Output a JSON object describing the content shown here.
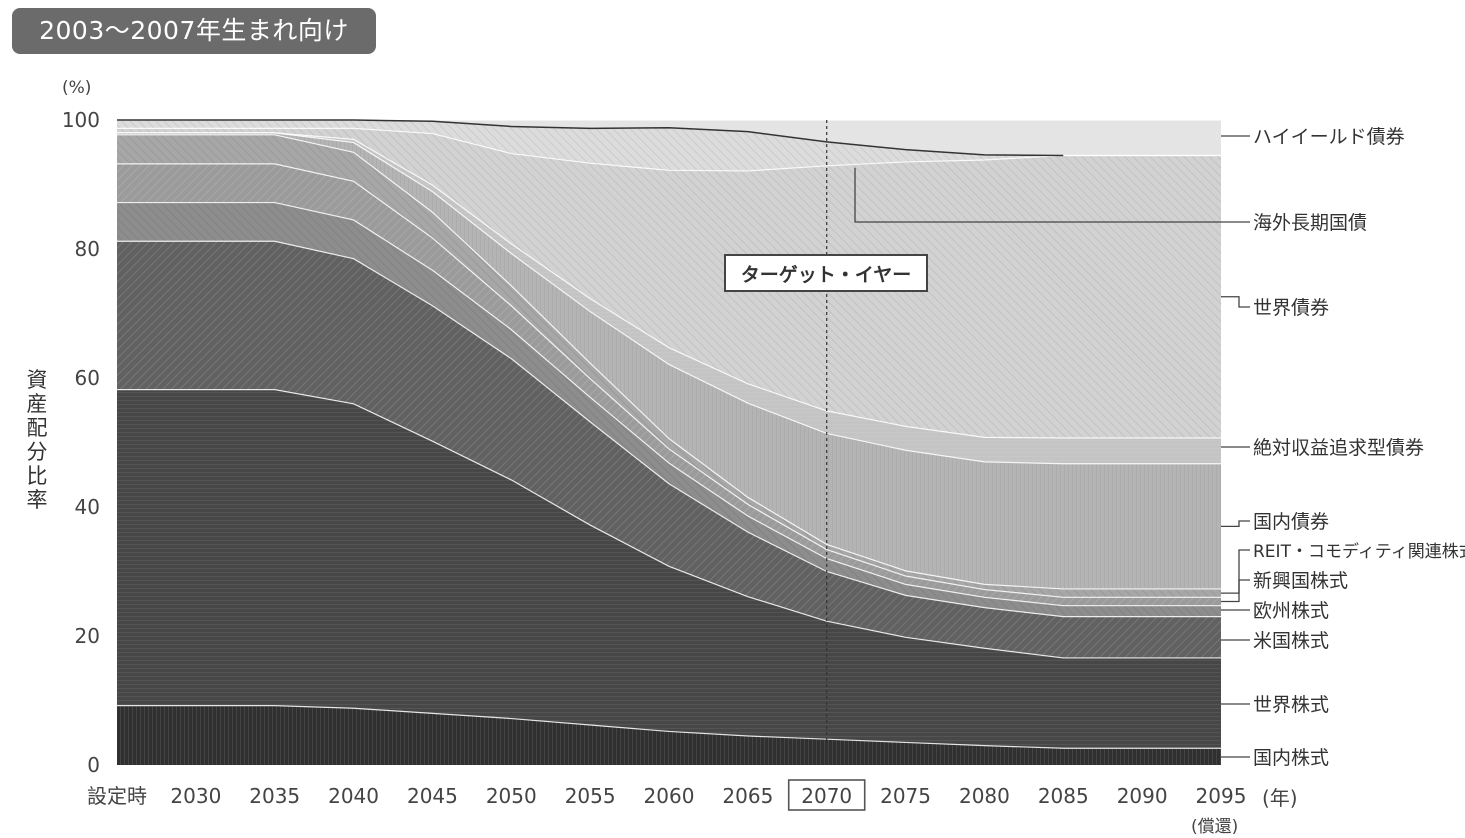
{
  "title": "2003〜2007年生まれ向け",
  "target_label": "ターゲット・イヤー",
  "x_unit": "(年)",
  "x_last_sublabel": "(償還)",
  "chart_data": {
    "type": "area",
    "stacked": true,
    "ylabel": "資産配分比率",
    "y_unit": "(%)",
    "ylim": [
      0,
      100
    ],
    "yticks": [
      0,
      20,
      40,
      60,
      80,
      100
    ],
    "categories": [
      "設定時",
      "2030",
      "2035",
      "2040",
      "2045",
      "2050",
      "2055",
      "2060",
      "2065",
      "2070",
      "2075",
      "2080",
      "2085",
      "2090",
      "2095"
    ],
    "highlight_category": "2070",
    "x": [
      2025,
      2030,
      2035,
      2040,
      2045,
      2050,
      2055,
      2060,
      2065,
      2070,
      2075,
      2080,
      2085,
      2090,
      2095
    ],
    "series": [
      {
        "name": "国内株式",
        "values": [
          9.2,
          9.2,
          9.2,
          8.8,
          8.0,
          7.2,
          6.2,
          5.2,
          4.5,
          4.0,
          3.5,
          3.0,
          2.6,
          2.6,
          2.6
        ]
      },
      {
        "name": "世界株式",
        "values": [
          49.0,
          49.0,
          49.0,
          47.2,
          42.2,
          37.0,
          31.0,
          25.6,
          21.6,
          18.3,
          16.3,
          15.1,
          14.0,
          14.0,
          14.0
        ]
      },
      {
        "name": "米国株式",
        "values": [
          23.0,
          23.0,
          23.0,
          22.5,
          21.0,
          18.8,
          16.0,
          12.8,
          10.0,
          7.7,
          6.5,
          6.3,
          6.4,
          6.4,
          6.4
        ]
      },
      {
        "name": "欧州株式",
        "values": [
          6.0,
          6.0,
          6.0,
          6.0,
          5.5,
          4.5,
          3.8,
          3.2,
          2.5,
          2.0,
          1.7,
          1.6,
          1.7,
          1.7,
          1.7
        ]
      },
      {
        "name": "新興国株式",
        "values": [
          6.0,
          6.0,
          6.0,
          6.0,
          5.0,
          3.7,
          2.9,
          2.2,
          1.8,
          1.4,
          1.3,
          1.2,
          1.3,
          1.3,
          1.3
        ]
      },
      {
        "name": "REIT・コモディティ関連株式",
        "values": [
          4.5,
          4.5,
          4.5,
          4.5,
          4.0,
          3.1,
          2.4,
          1.6,
          1.1,
          0.8,
          0.8,
          0.8,
          1.3,
          1.3,
          1.3
        ]
      },
      {
        "name": "国内債券",
        "values": [
          0.3,
          0.3,
          0.3,
          1.5,
          3.2,
          5.0,
          8.0,
          11.5,
          14.6,
          17.2,
          18.7,
          19.0,
          19.4,
          19.4,
          19.4
        ]
      },
      {
        "name": "絶対収益追求型債券",
        "values": [
          0,
          0,
          0,
          0.5,
          1.0,
          1.5,
          2.0,
          2.6,
          3.0,
          3.5,
          3.7,
          3.8,
          4.0,
          4.0,
          4.0
        ]
      },
      {
        "name": "世界債券",
        "values": [
          0.7,
          0.7,
          0.7,
          1.7,
          8.0,
          14.0,
          21.0,
          27.5,
          33.0,
          38.0,
          41.0,
          43.0,
          43.8,
          43.8,
          43.8
        ]
      },
      {
        "name": "海外長期国債",
        "values": [
          1.3,
          1.3,
          1.3,
          1.3,
          1.9,
          4.2,
          5.4,
          6.6,
          6.1,
          3.7,
          1.9,
          0.8,
          0,
          0,
          0
        ]
      },
      {
        "name": "ハイイールド債券",
        "values": [
          0,
          0,
          0,
          0,
          0.2,
          1.0,
          1.3,
          1.2,
          1.8,
          3.4,
          4.6,
          5.4,
          5.5,
          5.5,
          5.5
        ]
      }
    ],
    "legend_position": "right",
    "grid": false,
    "target_year": 2070,
    "colors": [
      "#303030",
      "#474747",
      "#616161",
      "#8d8d8d",
      "#9b9b9b",
      "#a7a7a7",
      "#b4b4b4",
      "#c4c4c4",
      "#d2d2d2",
      "#dcdcdc",
      "#e4e4e4"
    ]
  }
}
